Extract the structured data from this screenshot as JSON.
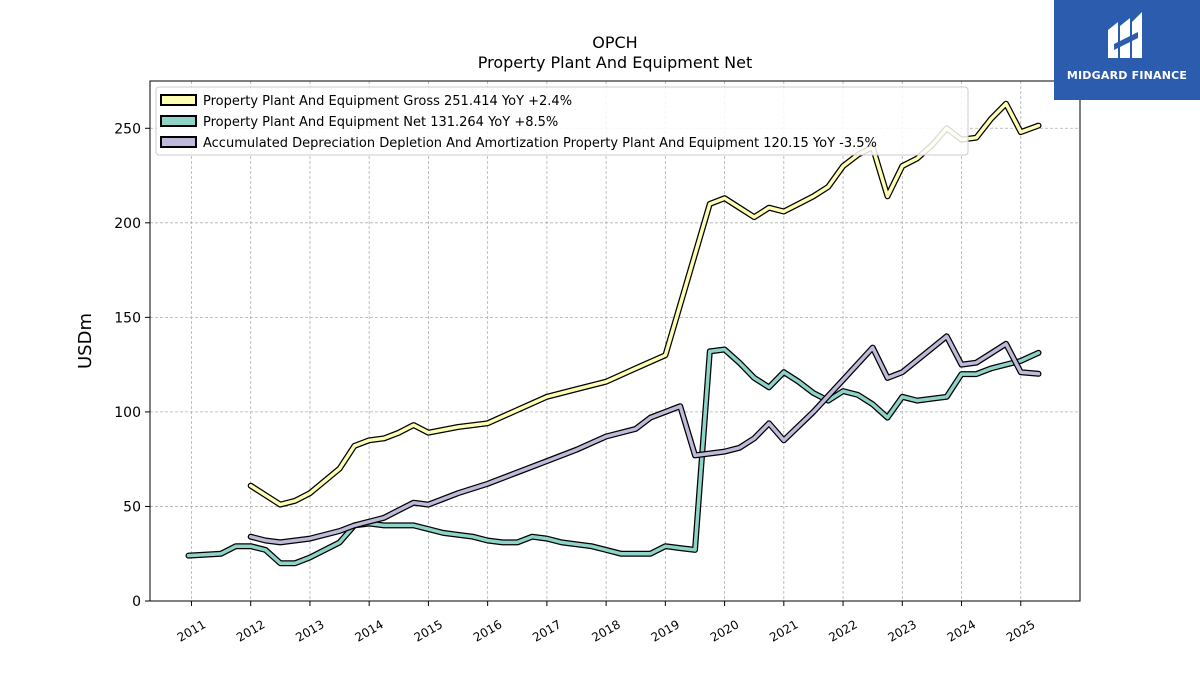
{
  "chart_data": {
    "type": "line",
    "title": "OPCH",
    "subtitle": "Property Plant And Equipment Net",
    "xlabel": "",
    "ylabel": "USDm",
    "ylim": [
      0,
      275
    ],
    "xlim": [
      2010.3,
      2026.0
    ],
    "y_ticks": [
      0,
      50,
      100,
      150,
      200,
      250
    ],
    "x_tick_labels": [
      "2011",
      "2012",
      "2013",
      "2014",
      "2015",
      "2016",
      "2017",
      "2018",
      "2019",
      "2020",
      "2021",
      "2022",
      "2023",
      "2024",
      "2025"
    ],
    "grid": true,
    "legend_position": "top-left",
    "series": [
      {
        "name": "Property Plant And Equipment Gross  251.414 YoY +2.4%",
        "color": "#ffffb3",
        "points": [
          [
            2012.0,
            61
          ],
          [
            2012.5,
            51
          ],
          [
            2012.75,
            53
          ],
          [
            2013.0,
            57
          ],
          [
            2013.5,
            70
          ],
          [
            2013.75,
            82
          ],
          [
            2014.0,
            85
          ],
          [
            2014.25,
            86
          ],
          [
            2014.5,
            89
          ],
          [
            2014.75,
            93
          ],
          [
            2015.0,
            89
          ],
          [
            2015.5,
            92
          ],
          [
            2016.0,
            94
          ],
          [
            2016.5,
            101
          ],
          [
            2017.0,
            108
          ],
          [
            2017.5,
            112
          ],
          [
            2018.0,
            116
          ],
          [
            2018.5,
            123
          ],
          [
            2019.0,
            130
          ],
          [
            2019.75,
            210
          ],
          [
            2020.0,
            213
          ],
          [
            2020.25,
            208
          ],
          [
            2020.5,
            203
          ],
          [
            2020.75,
            208
          ],
          [
            2021.0,
            206
          ],
          [
            2021.25,
            210
          ],
          [
            2021.5,
            214
          ],
          [
            2021.75,
            219
          ],
          [
            2022.0,
            230
          ],
          [
            2022.25,
            236
          ],
          [
            2022.5,
            240
          ],
          [
            2022.75,
            214
          ],
          [
            2023.0,
            230
          ],
          [
            2023.25,
            234
          ],
          [
            2023.5,
            241
          ],
          [
            2023.75,
            250
          ],
          [
            2024.0,
            244
          ],
          [
            2024.25,
            245
          ],
          [
            2024.5,
            255
          ],
          [
            2024.75,
            263
          ],
          [
            2025.0,
            248
          ],
          [
            2025.3,
            251.414
          ]
        ]
      },
      {
        "name": "Property Plant And Equipment Net  131.264 YoY +8.5%",
        "color": "#8dd3c7",
        "points": [
          [
            2010.95,
            24
          ],
          [
            2011.5,
            25
          ],
          [
            2011.75,
            29
          ],
          [
            2012.0,
            29
          ],
          [
            2012.25,
            27
          ],
          [
            2012.5,
            20
          ],
          [
            2012.75,
            20
          ],
          [
            2013.0,
            23
          ],
          [
            2013.5,
            31
          ],
          [
            2013.75,
            40
          ],
          [
            2014.0,
            41
          ],
          [
            2014.25,
            40
          ],
          [
            2014.5,
            40
          ],
          [
            2014.75,
            40
          ],
          [
            2015.0,
            38
          ],
          [
            2015.25,
            36
          ],
          [
            2015.5,
            35
          ],
          [
            2015.75,
            34
          ],
          [
            2016.0,
            32
          ],
          [
            2016.25,
            31
          ],
          [
            2016.5,
            31
          ],
          [
            2016.75,
            34
          ],
          [
            2017.0,
            33
          ],
          [
            2017.25,
            31
          ],
          [
            2017.5,
            30
          ],
          [
            2017.75,
            29
          ],
          [
            2018.0,
            27
          ],
          [
            2018.25,
            25
          ],
          [
            2018.5,
            25
          ],
          [
            2018.75,
            25
          ],
          [
            2019.0,
            29
          ],
          [
            2019.25,
            28
          ],
          [
            2019.5,
            27
          ],
          [
            2019.75,
            132
          ],
          [
            2020.0,
            133
          ],
          [
            2020.25,
            126
          ],
          [
            2020.5,
            118
          ],
          [
            2020.75,
            113
          ],
          [
            2021.0,
            121
          ],
          [
            2021.25,
            116
          ],
          [
            2021.5,
            110
          ],
          [
            2021.75,
            106
          ],
          [
            2022.0,
            111
          ],
          [
            2022.25,
            109
          ],
          [
            2022.5,
            104
          ],
          [
            2022.75,
            97
          ],
          [
            2023.0,
            108
          ],
          [
            2023.25,
            106
          ],
          [
            2023.5,
            107
          ],
          [
            2023.75,
            108
          ],
          [
            2024.0,
            120
          ],
          [
            2024.25,
            120
          ],
          [
            2024.5,
            123
          ],
          [
            2024.75,
            125
          ],
          [
            2025.0,
            127
          ],
          [
            2025.3,
            131.264
          ]
        ]
      },
      {
        "name": "Accumulated Depreciation Depletion And Amortization Property Plant And Equipment  120.15 YoY -3.5%",
        "color": "#bebada",
        "points": [
          [
            2012.0,
            34
          ],
          [
            2012.25,
            32
          ],
          [
            2012.5,
            31
          ],
          [
            2012.75,
            32
          ],
          [
            2013.0,
            33
          ],
          [
            2013.5,
            37
          ],
          [
            2013.75,
            40
          ],
          [
            2014.0,
            42
          ],
          [
            2014.25,
            44
          ],
          [
            2014.5,
            48
          ],
          [
            2014.75,
            52
          ],
          [
            2015.0,
            51
          ],
          [
            2015.25,
            54
          ],
          [
            2015.5,
            57
          ],
          [
            2016.0,
            62
          ],
          [
            2016.5,
            68
          ],
          [
            2017.0,
            74
          ],
          [
            2017.5,
            80
          ],
          [
            2018.0,
            87
          ],
          [
            2018.5,
            91
          ],
          [
            2018.75,
            97
          ],
          [
            2019.0,
            100
          ],
          [
            2019.25,
            103
          ],
          [
            2019.5,
            77
          ],
          [
            2020.0,
            79
          ],
          [
            2020.25,
            81
          ],
          [
            2020.5,
            86
          ],
          [
            2020.75,
            94
          ],
          [
            2021.0,
            85
          ],
          [
            2021.5,
            100
          ],
          [
            2022.0,
            117
          ],
          [
            2022.5,
            134
          ],
          [
            2022.75,
            118
          ],
          [
            2023.0,
            121
          ],
          [
            2023.75,
            140
          ],
          [
            2024.0,
            125
          ],
          [
            2024.25,
            126
          ],
          [
            2024.5,
            131
          ],
          [
            2024.75,
            136
          ],
          [
            2025.0,
            121
          ],
          [
            2025.3,
            120.15
          ]
        ]
      }
    ]
  },
  "branding": {
    "logo_text": "MIDGARD FINANCE"
  }
}
